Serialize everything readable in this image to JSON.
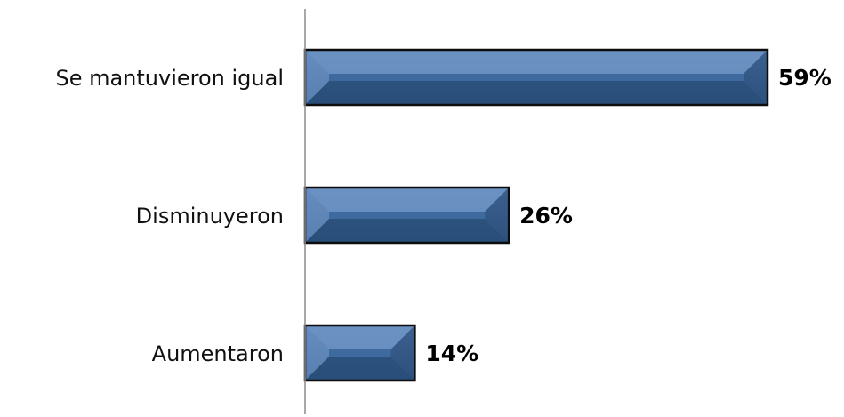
{
  "chart_data": {
    "type": "bar",
    "orientation": "horizontal",
    "categories": [
      "Se mantuvieron igual",
      "Disminuyeron",
      "Aumentaron"
    ],
    "values": [
      59,
      26,
      14
    ],
    "value_labels": [
      "59%",
      "26%",
      "14%"
    ],
    "unit": "%",
    "title": "",
    "xlabel": "",
    "ylabel": "",
    "xlim": [
      0,
      59
    ],
    "grid": false,
    "legend": "none",
    "colors": {
      "bar_fill": "#4a74a8",
      "bar_face": "#3f6aa0",
      "bar_light": "#6f94c4",
      "bar_dark": "#24466f",
      "bar_outline": "#0d0d0d",
      "axis": "#8c8c8c"
    }
  }
}
